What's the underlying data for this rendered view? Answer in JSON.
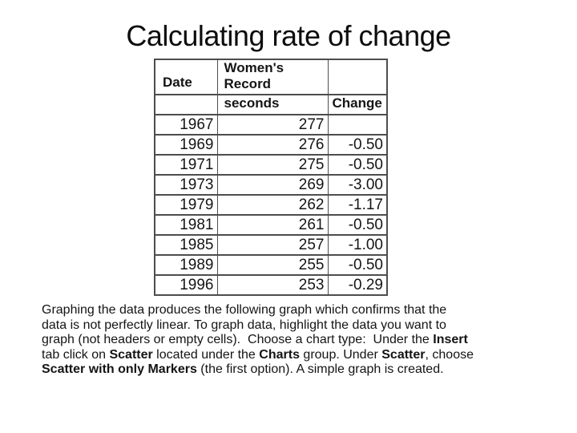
{
  "slide": {
    "title": "Calculating rate of change",
    "background_color": "#ffffff",
    "text_color": "#0d0d0d"
  },
  "table": {
    "border_color": "#4d4d4d",
    "header": {
      "date": "Date",
      "record_line1": "Women's",
      "record_line2": "Record",
      "seconds": "seconds",
      "change": "Change"
    },
    "columns": [
      "Date",
      "Women's Record seconds",
      "Change"
    ],
    "rows": [
      {
        "date": "1967",
        "seconds": "277",
        "change": ""
      },
      {
        "date": "1969",
        "seconds": "276",
        "change": "-0.50"
      },
      {
        "date": "1971",
        "seconds": "275",
        "change": "-0.50"
      },
      {
        "date": "1973",
        "seconds": "269",
        "change": "-3.00"
      },
      {
        "date": "1979",
        "seconds": "262",
        "change": "-1.17"
      },
      {
        "date": "1981",
        "seconds": "261",
        "change": "-0.50"
      },
      {
        "date": "1985",
        "seconds": "257",
        "change": "-1.00"
      },
      {
        "date": "1989",
        "seconds": "255",
        "change": "-0.50"
      },
      {
        "date": "1996",
        "seconds": "253",
        "change": "-0.29"
      }
    ]
  },
  "paragraph": {
    "lines": [
      [
        {
          "text": "Graphing the data produces the following graph which confirms that the"
        }
      ],
      [
        {
          "text": "data is not perfectly linear. To graph data, highlight the data you want to"
        }
      ],
      [
        {
          "text": "graph (not headers or empty cells).  Choose a chart type:  Under the "
        },
        {
          "text": "Insert",
          "bold": true
        }
      ],
      [
        {
          "text": "tab click on "
        },
        {
          "text": "Scatter",
          "bold": true
        },
        {
          "text": " located under the "
        },
        {
          "text": "Charts",
          "bold": true
        },
        {
          "text": " group. Under "
        },
        {
          "text": "Scatter",
          "bold": true
        },
        {
          "text": ", choose"
        }
      ],
      [
        {
          "text": "Scatter with only Markers",
          "bold": true
        },
        {
          "text": " (the first option). A simple graph is created."
        }
      ]
    ]
  }
}
